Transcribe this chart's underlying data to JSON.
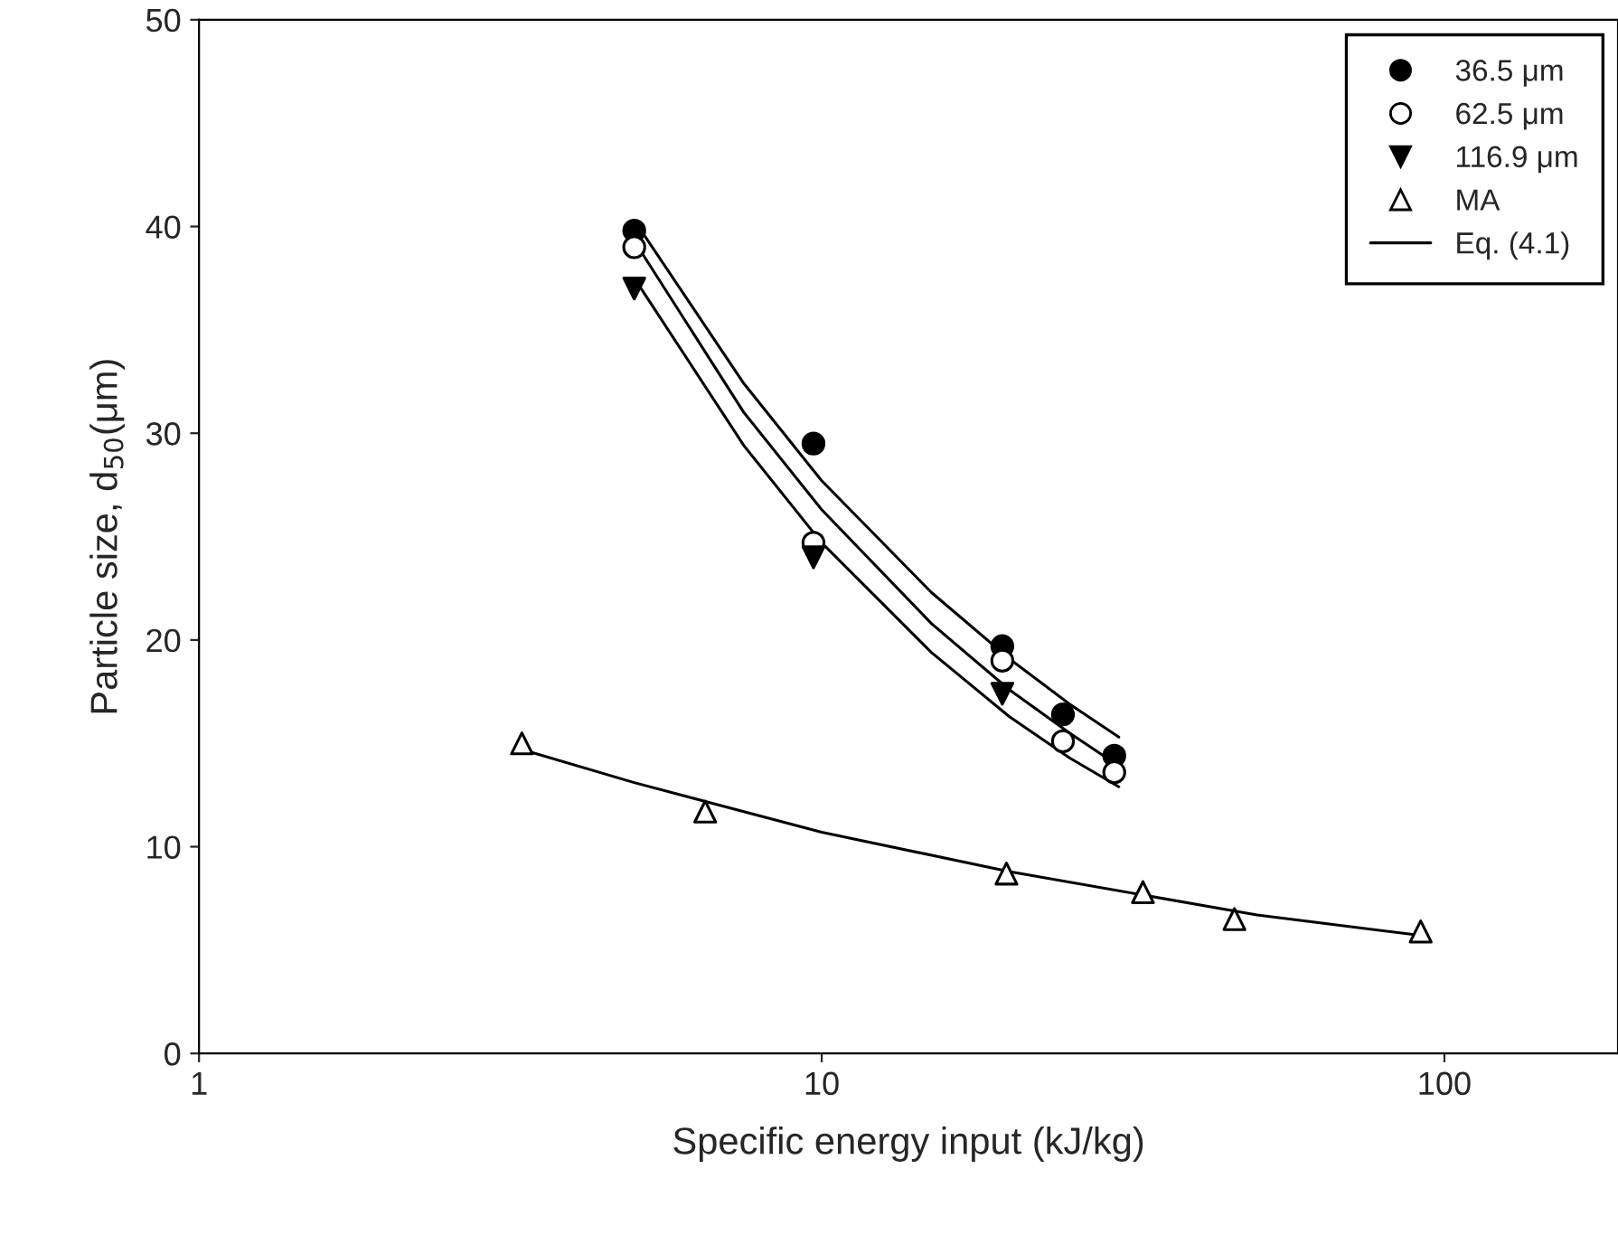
{
  "chart_data": {
    "type": "scatter",
    "xlabel": "Specific energy input (kJ/kg)",
    "ylabel": "Particle size, d$_{50}$(μm)",
    "log": "x",
    "xlim": [
      1,
      190
    ],
    "xticks": [
      1,
      10,
      100
    ],
    "ylim": [
      0,
      50
    ],
    "yticks": [
      0,
      10,
      20,
      30,
      40,
      50
    ],
    "grid": false,
    "legend": "top right",
    "series": [
      {
        "name": "36.5 μm",
        "marker": "circle",
        "color": "#000000",
        "x": [
          5,
          9.7,
          19.5,
          24.4,
          29.5
        ],
        "values": [
          39.8,
          29.5,
          19.7,
          16.4,
          14.4
        ]
      },
      {
        "name": "62.5 μm",
        "marker": "circle",
        "color": "#ffffff",
        "x": [
          5,
          9.7,
          19.5,
          24.4,
          29.5
        ],
        "values": [
          39.0,
          24.7,
          19.0,
          15.1,
          13.6
        ]
      },
      {
        "name": "116.9 μm",
        "marker": "triangle_down",
        "color": "#000000",
        "x": [
          5,
          9.7,
          19.5
        ],
        "values": [
          37.0,
          24.0,
          17.4
        ]
      },
      {
        "name": "MA",
        "marker": "triangle",
        "color": "#ffffff",
        "x": [
          3.3,
          6.5,
          19.8,
          32.8,
          46,
          91.6
        ],
        "values": [
          15.0,
          11.7,
          8.7,
          7.8,
          6.5,
          5.9
        ]
      },
      {
        "name": "Eq. (4.1)",
        "type": "line",
        "color": "#000000",
        "x": [
          5,
          7.5,
          10,
          15,
          20,
          25,
          30
        ],
        "values": [
          40.3,
          32.4,
          27.7,
          22.3,
          19.1,
          16.9,
          15.3
        ]
      },
      {
        "type": "line",
        "color": "#000000",
        "x": [
          5,
          7.5,
          10,
          15,
          20,
          25,
          30
        ],
        "values": [
          39.3,
          31.0,
          26.3,
          20.8,
          17.6,
          15.5,
          13.9
        ]
      },
      {
        "type": "line",
        "color": "#000000",
        "x": [
          5,
          7.5,
          10,
          15,
          20,
          25,
          30
        ],
        "values": [
          37.5,
          29.4,
          24.7,
          19.4,
          16.3,
          14.3,
          12.9
        ]
      },
      {
        "type": "line",
        "color": "#000000",
        "x": [
          3.3,
          5,
          10,
          20,
          50,
          92
        ],
        "values": [
          14.7,
          13.1,
          10.7,
          8.8,
          6.7,
          5.7
        ]
      }
    ]
  }
}
